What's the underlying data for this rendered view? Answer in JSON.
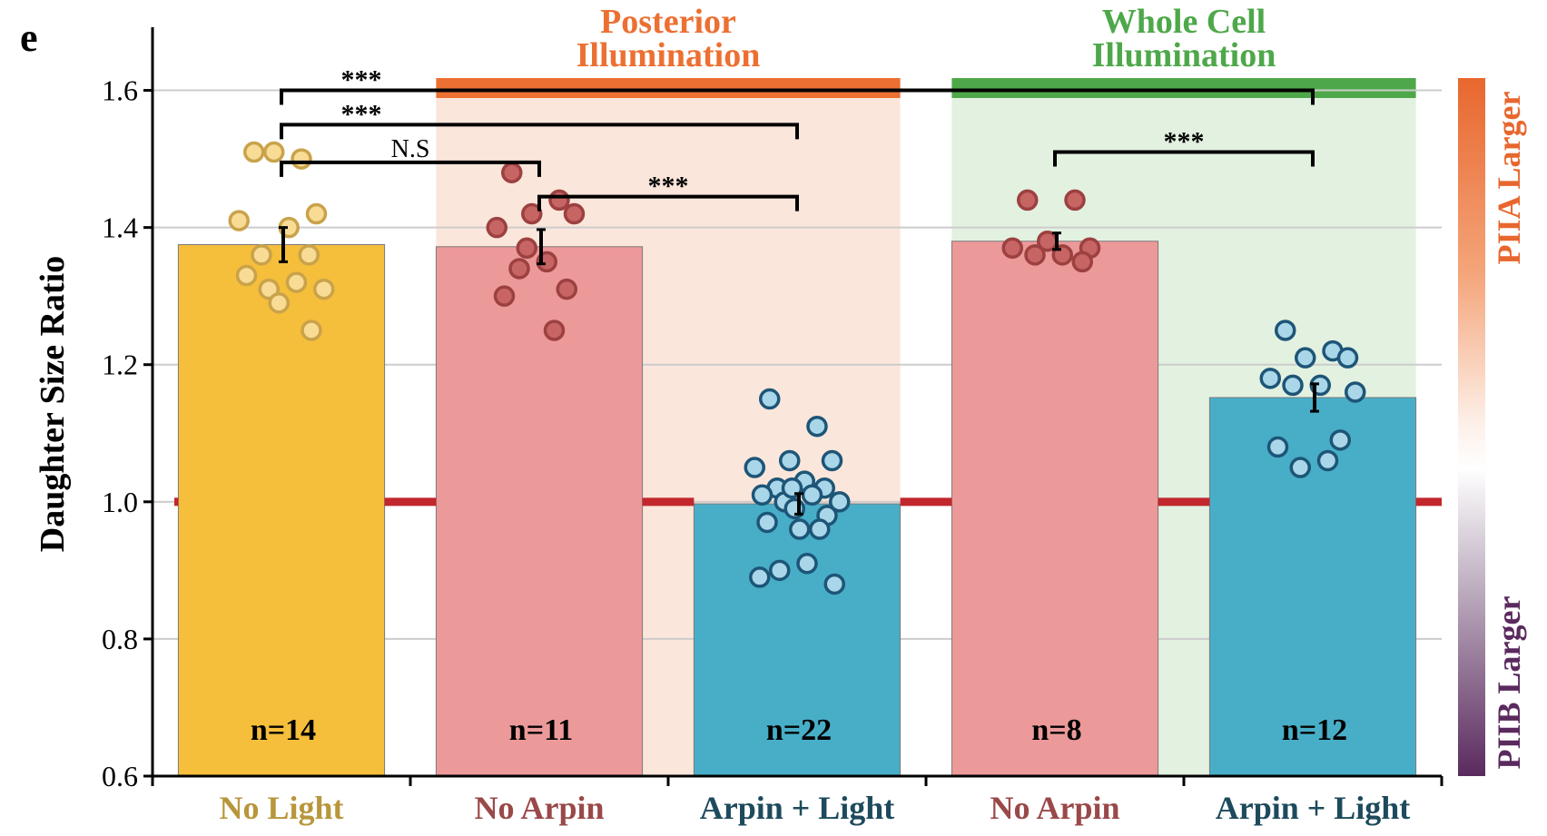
{
  "panel_label": "e",
  "chart_data": {
    "type": "bar",
    "ylabel": "Daughter Size Ratio",
    "ylim": [
      0.6,
      1.7
    ],
    "yticks": [
      0.6,
      0.8,
      1.0,
      1.2,
      1.4,
      1.6
    ],
    "ytick_labels": [
      "0.6",
      "0.8",
      "1.0",
      "1.2",
      "1.4",
      "1.6"
    ],
    "grid": "horizontal",
    "reference_line": {
      "y": 1.0,
      "color": "#c1272d"
    },
    "categories": [
      "No Light",
      "No Arpin",
      "Arpin + Light",
      "No Arpin",
      "Arpin + Light"
    ],
    "category_colors": [
      "#b8963c",
      "#9a4848",
      "#1d4a5c",
      "#9a4848",
      "#1d4a5c"
    ],
    "bars": [
      {
        "category": "No Light",
        "value": 1.375,
        "error": 0.025,
        "n_label": "n=14",
        "fill": "#f5be3b",
        "point_fill": "#f8dc96",
        "point_stroke": "#c9a24a",
        "points": [
          1.51,
          1.5,
          1.51,
          1.42,
          1.41,
          1.4,
          1.36,
          1.36,
          1.33,
          1.32,
          1.31,
          1.31,
          1.29,
          1.25
        ]
      },
      {
        "category": "No Arpin",
        "value": 1.372,
        "error": 0.025,
        "n_label": "n=11",
        "fill": "#ec999a",
        "point_fill": "#c76565",
        "point_stroke": "#9c4040",
        "points": [
          1.48,
          1.44,
          1.42,
          1.42,
          1.4,
          1.35,
          1.34,
          1.31,
          1.3,
          1.25,
          1.37
        ]
      },
      {
        "category": "Arpin + Light",
        "value": 0.997,
        "error": 0.015,
        "n_label": "n=22",
        "fill": "#48aec8",
        "point_fill": "#a9d6e8",
        "point_stroke": "#1d5577",
        "points": [
          1.15,
          1.11,
          1.06,
          1.06,
          1.05,
          1.03,
          1.02,
          1.02,
          1.01,
          1.01,
          1.0,
          1.0,
          0.99,
          0.98,
          0.97,
          0.96,
          0.96,
          0.9,
          0.91,
          0.89,
          0.88,
          1.02
        ]
      },
      {
        "category": "No Arpin",
        "value": 1.38,
        "error": 0.012,
        "n_label": "n=8",
        "fill": "#ec999a",
        "point_fill": "#c76565",
        "point_stroke": "#9c4040",
        "points": [
          1.44,
          1.44,
          1.38,
          1.37,
          1.37,
          1.36,
          1.36,
          1.35
        ]
      },
      {
        "category": "Arpin + Light",
        "value": 1.152,
        "error": 0.02,
        "n_label": "n=12",
        "fill": "#48aec8",
        "point_fill": "#a9d6e8",
        "point_stroke": "#1d5577",
        "points": [
          1.25,
          1.22,
          1.21,
          1.21,
          1.18,
          1.17,
          1.17,
          1.09,
          1.08,
          1.06,
          1.05,
          1.16
        ]
      }
    ],
    "conditions": [
      {
        "label_lines": [
          "Posterior",
          "Illumination"
        ],
        "from_bar": 1,
        "to_bar": 2,
        "color": "#ec7032",
        "band_color": "#fbe6db"
      },
      {
        "label_lines": [
          "Whole Cell",
          "Illumination"
        ],
        "from_bar": 3,
        "to_bar": 4,
        "color": "#4ea84a",
        "band_color": "#e3f1e1"
      }
    ],
    "significance": [
      {
        "from_bar": 0,
        "to_bar": 4,
        "y": 1.6,
        "label": "***"
      },
      {
        "from_bar": 0,
        "to_bar": 2,
        "y": 1.55,
        "label": "***"
      },
      {
        "from_bar": 0,
        "to_bar": 1,
        "y": 1.495,
        "label": "N.S"
      },
      {
        "from_bar": 1,
        "to_bar": 2,
        "y": 1.445,
        "label": "***"
      },
      {
        "from_bar": 3,
        "to_bar": 4,
        "y": 1.51,
        "label": "***"
      }
    ],
    "colorbar": {
      "top_label": "PIIA Larger",
      "bottom_label": "PIIB Larger",
      "top_color": "#e8672e",
      "bottom_color": "#5a2a5e",
      "top_label_color": "#e8672e",
      "bottom_label_color": "#5a2a5e"
    }
  }
}
